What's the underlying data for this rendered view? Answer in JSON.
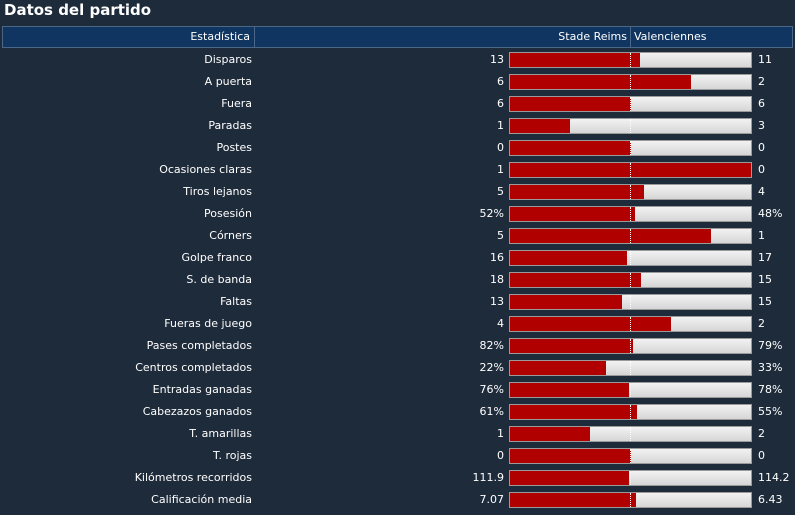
{
  "title": "Datos del partido",
  "header": {
    "stat_label": "Estadística",
    "home_team": "Stade Reims",
    "away_team": "Valenciennes"
  },
  "colors": {
    "home_bar": "#b00000",
    "away_bar": "#e2e2e2",
    "header_bg": "#0f3560",
    "background": "#1e2b3b"
  },
  "stats": [
    {
      "label": "Disparos",
      "home": "13",
      "away": "11",
      "home_share": 0.54
    },
    {
      "label": "A puerta",
      "home": "6",
      "away": "2",
      "home_share": 0.75
    },
    {
      "label": "Fuera",
      "home": "6",
      "away": "6",
      "home_share": 0.5
    },
    {
      "label": "Paradas",
      "home": "1",
      "away": "3",
      "home_share": 0.25
    },
    {
      "label": "Postes",
      "home": "0",
      "away": "0",
      "home_share": 0.5
    },
    {
      "label": "Ocasiones claras",
      "home": "1",
      "away": "0",
      "home_share": 1.0
    },
    {
      "label": "Tiros lejanos",
      "home": "5",
      "away": "4",
      "home_share": 0.555
    },
    {
      "label": "Posesión",
      "home": "52%",
      "away": "48%",
      "home_share": 0.52
    },
    {
      "label": "Córners",
      "home": "5",
      "away": "1",
      "home_share": 0.833
    },
    {
      "label": "Golpe franco",
      "home": "16",
      "away": "17",
      "home_share": 0.485
    },
    {
      "label": "S. de banda",
      "home": "18",
      "away": "15",
      "home_share": 0.545
    },
    {
      "label": "Faltas",
      "home": "13",
      "away": "15",
      "home_share": 0.464
    },
    {
      "label": "Fueras de juego",
      "home": "4",
      "away": "2",
      "home_share": 0.667
    },
    {
      "label": "Pases completados",
      "home": "82%",
      "away": "79%",
      "home_share": 0.509
    },
    {
      "label": "Centros completados",
      "home": "22%",
      "away": "33%",
      "home_share": 0.4
    },
    {
      "label": "Entradas ganadas",
      "home": "76%",
      "away": "78%",
      "home_share": 0.494
    },
    {
      "label": "Cabezazos ganados",
      "home": "61%",
      "away": "55%",
      "home_share": 0.526
    },
    {
      "label": "T. amarillas",
      "home": "1",
      "away": "2",
      "home_share": 0.333
    },
    {
      "label": "T. rojas",
      "home": "0",
      "away": "0",
      "home_share": 0.5
    },
    {
      "label": "Kilómetros recorridos",
      "home": "111.9",
      "away": "114.2",
      "home_share": 0.495
    },
    {
      "label": "Calificación media",
      "home": "7.07",
      "away": "6.43",
      "home_share": 0.524
    }
  ]
}
